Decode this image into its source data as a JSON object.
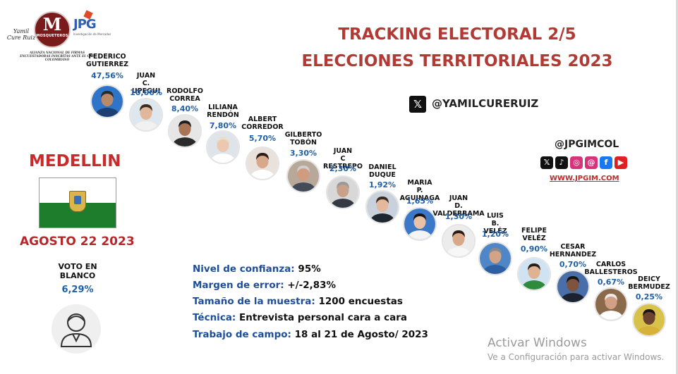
{
  "logo": {
    "script_text": "Yamil Cure Ruiz",
    "circle_letter": "M",
    "circle_word": "MOSQUETEROS",
    "jpg_text": "JPG",
    "jpg_subtitle": "Investigación de Mercados",
    "caption": "ALIANZA NACIONAL DE FIRMAS ENCUESTADORAS INSCRITAS ANTE EL CNE COLOMBIANO"
  },
  "title": {
    "line1": "TRACKING ELECTORAL 2/5",
    "line2": "ELECCIONES TERRITORIALES 2023"
  },
  "social": {
    "x_icon_glyph": "𝕏",
    "x_handle": "@YAMILCURERUIZ",
    "jpg_handle": "@JPGIMCOL",
    "icons": [
      {
        "name": "x-icon",
        "glyph": "𝕏",
        "color": "#111111"
      },
      {
        "name": "tiktok-icon",
        "glyph": "♪",
        "color": "#111111"
      },
      {
        "name": "instagram-icon",
        "glyph": "◎",
        "color": "#d6337a"
      },
      {
        "name": "threads-icon",
        "glyph": "@",
        "color": "#d6337a"
      },
      {
        "name": "facebook-icon",
        "glyph": "f",
        "color": "#1877f2"
      },
      {
        "name": "youtube-icon",
        "glyph": "▶",
        "color": "#e02020"
      }
    ],
    "website": "WWW.JPGIM.COM"
  },
  "left": {
    "city": "MEDELLIN",
    "date": "AGOSTO 22 2023",
    "blank_vote_label": "VOTO EN BLANCO",
    "blank_vote_pct": "6,29%"
  },
  "methodology": [
    {
      "key": "Nivel de confianza:",
      "value": "95%"
    },
    {
      "key": "Margen de error:",
      "value": "+/-2,83%"
    },
    {
      "key": "Tamaño de la muestra:",
      "value": "1200 encuestas"
    },
    {
      "key": "Técnica:",
      "value": "Entrevista personal cara a cara"
    },
    {
      "key": "Trabajo de campo:",
      "value": "18 al 21 de Agosto/ 2023"
    }
  ],
  "candidates": [
    {
      "name": "FEDERICO GUTIERREZ",
      "pct": "47,56%",
      "skin": "#b98a6a",
      "hair": "#2a2a2a",
      "bg": "#2e74c9",
      "shirt": "#1d3f73"
    },
    {
      "name": "JUAN C. UPEGUI",
      "pct": "10,06%",
      "skin": "#e0b79a",
      "hair": "#3a2a20",
      "bg": "#dfe7ee",
      "shirt": "#f1f1f1"
    },
    {
      "name": "RODOLFO CORREA",
      "pct": "8,40%",
      "skin": "#a87456",
      "hair": "#1e1e1e",
      "bg": "#e6e6e6",
      "shirt": "#2a2a2a"
    },
    {
      "name": "LILIANA RENDÓN",
      "pct": "7,80%",
      "skin": "#ecc8b0",
      "hair": "#e8e0c8",
      "bg": "#dfe4ea",
      "shirt": "#ffffff"
    },
    {
      "name": "ALBERT CORREDOR",
      "pct": "5,70%",
      "skin": "#d7a88a",
      "hair": "#2b1d17",
      "bg": "#e9e1dc",
      "shirt": "#ffffff"
    },
    {
      "name": "GILBERTO TOBÓN",
      "pct": "3,30%",
      "skin": "#cf9c80",
      "hair": "#cfcfcf",
      "bg": "#b8a89a",
      "shirt": "#444b58"
    },
    {
      "name": "JUAN C RESTREPO",
      "pct": "2,30%",
      "skin": "#c9a089",
      "hair": "#9a9a9a",
      "bg": "#d8d8d8",
      "shirt": "#333a44"
    },
    {
      "name": "DANIEL DUQUE",
      "pct": "1,92%",
      "skin": "#e3b89c",
      "hair": "#3b2a1d",
      "bg": "#c9d2dc",
      "shirt": "#1e2630"
    },
    {
      "name": "MARIA P. AGUINAGA",
      "pct": "1,65%",
      "skin": "#e8c1a6",
      "hair": "#1c1410",
      "bg": "#3b78c8",
      "shirt": "#f4f4f4"
    },
    {
      "name": "JUAN D. VALDERRAMA",
      "pct": "1,30%",
      "skin": "#d8a888",
      "hair": "#2a1c14",
      "bg": "#ececec",
      "shirt": "#f7f7f7"
    },
    {
      "name": "LUIS B. VELÉZ",
      "pct": "1,20%",
      "skin": "#d2a386",
      "hair": "#8a8a8a",
      "bg": "#4f86c8",
      "shirt": "#2d5fa3"
    },
    {
      "name": "FELIPE VELÉZ",
      "pct": "0,90%",
      "skin": "#e0b294",
      "hair": "#2a1e14",
      "bg": "#cfe3f3",
      "shirt": "#2e8a3c"
    },
    {
      "name": "CESAR HERNANDEZ",
      "pct": "0,70%",
      "skin": "#7e5440",
      "hair": "#141414",
      "bg": "#4a6ea8",
      "shirt": "#1c2230"
    },
    {
      "name": "CARLOS BALLESTEROS",
      "pct": "0,67%",
      "skin": "#d2a085",
      "hair": "#ececec",
      "bg": "#8a6a4a",
      "shirt": "#ffffff"
    },
    {
      "name": "DEICY BERMUDEZ",
      "pct": "0,25%",
      "skin": "#6b4330",
      "hair": "#1a1410",
      "bg": "#d9c24a",
      "shirt": "#d7b23a"
    }
  ],
  "watermark": {
    "line1": "Activar Windows",
    "line2": "Ve a Configuración para activar Windows."
  }
}
